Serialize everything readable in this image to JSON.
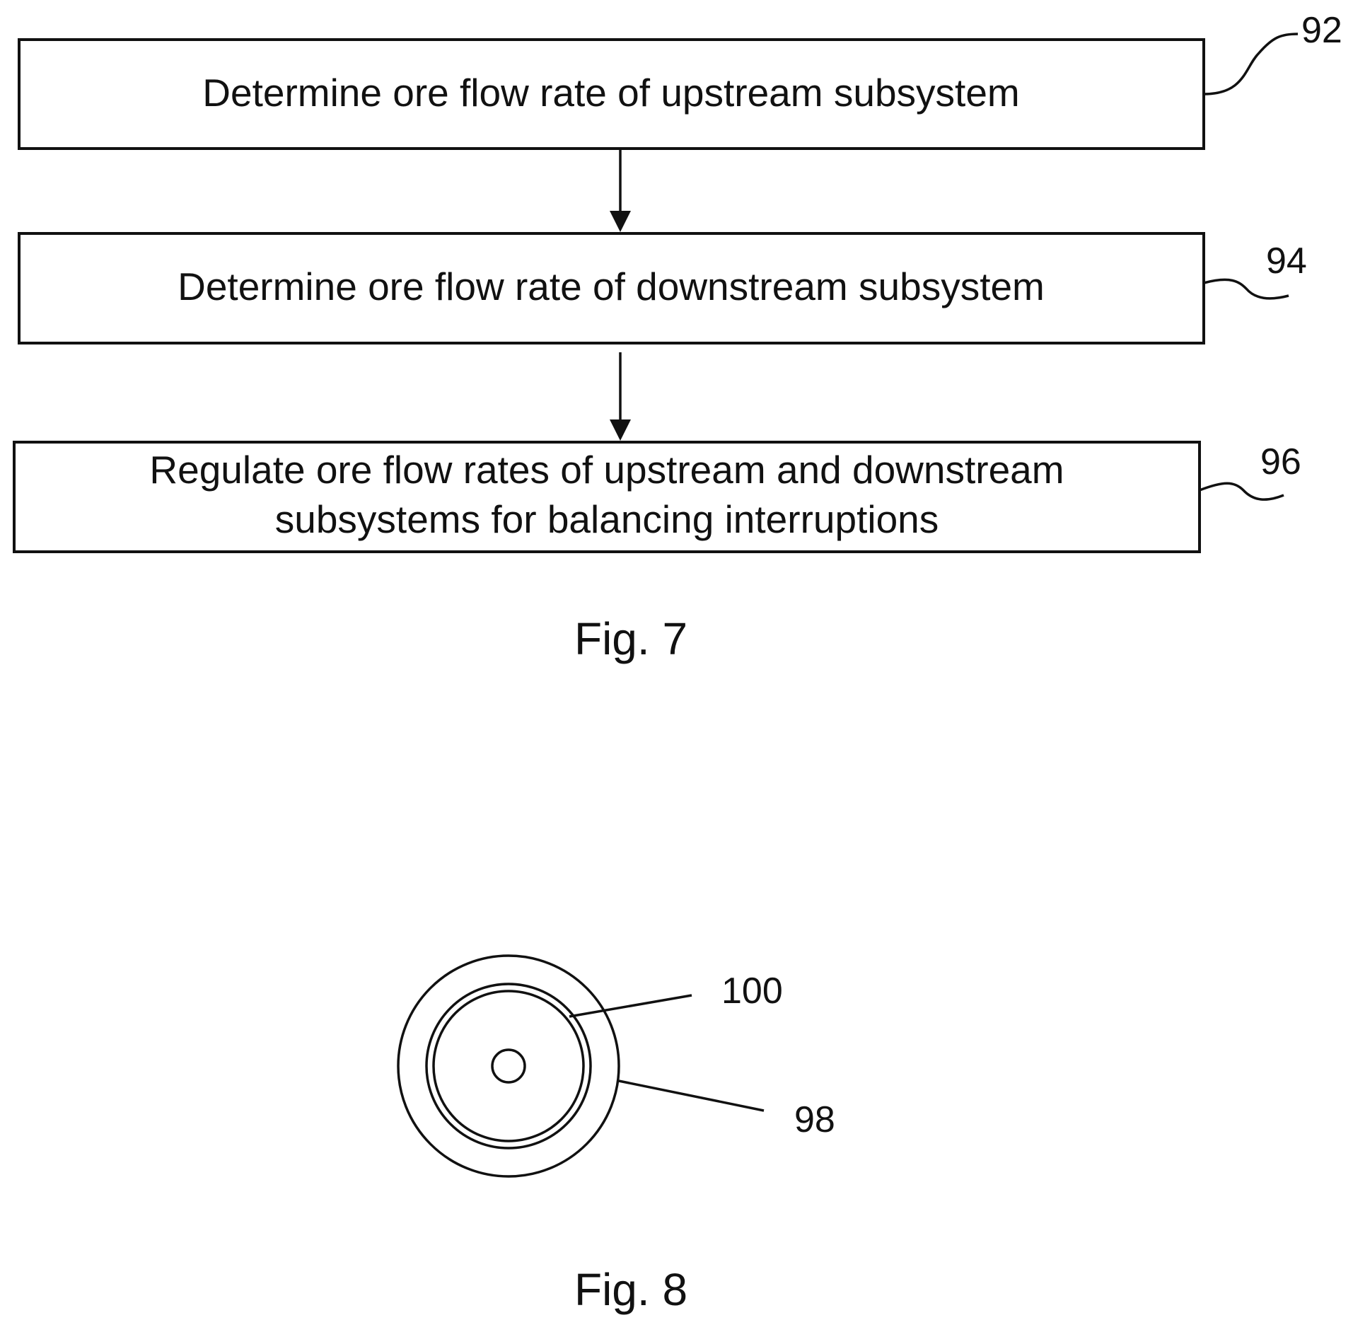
{
  "fig7": {
    "steps": [
      {
        "ref": "92",
        "lines": [
          "Determine ore flow rate of upstream subsystem"
        ]
      },
      {
        "ref": "94",
        "lines": [
          "Determine ore flow rate of downstream subsystem"
        ]
      },
      {
        "ref": "96",
        "lines": [
          "Regulate ore flow rates of upstream and downstream",
          "subsystems for balancing interruptions"
        ]
      }
    ],
    "caption": "Fig. 7"
  },
  "fig8": {
    "refs": [
      "100",
      "98"
    ],
    "caption": "Fig. 8"
  }
}
